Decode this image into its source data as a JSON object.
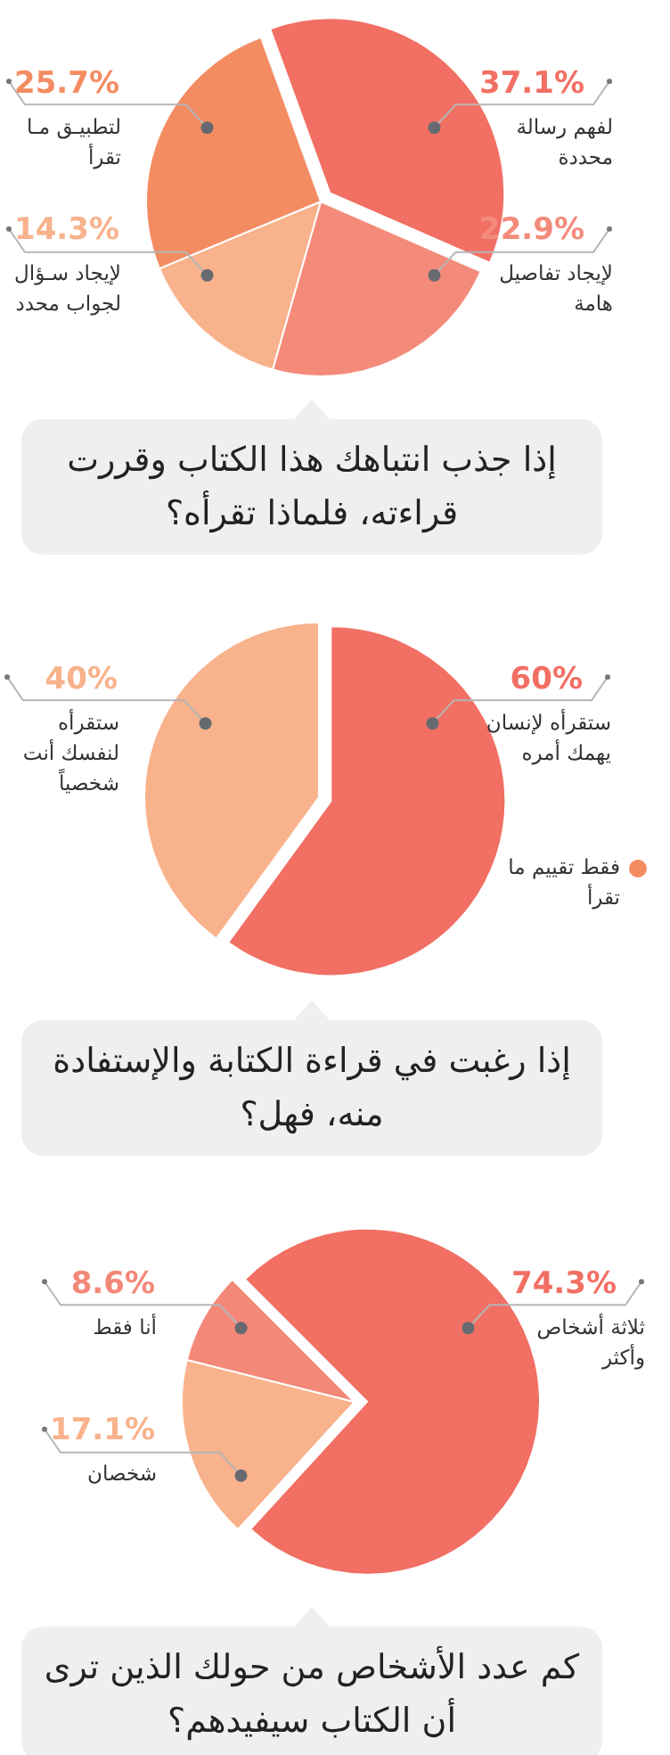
{
  "chart_data": [
    {
      "type": "pie",
      "title": "إذا جذب انتباهك هذا الكتاب وقررت قراءته، فلماذا تقرأه؟",
      "categories": [
        "لفهم رسالة محددة",
        "لإيجاد تفاصيل هامة",
        "لإيجاد سـؤال لجواب محدد",
        "لتطبيـق مـا تقرأ"
      ],
      "values": [
        37.1,
        22.9,
        14.3,
        25.7
      ],
      "colors": [
        "#f26f63",
        "#f48b7a",
        "#f8b28c",
        "#f48c62"
      ],
      "value_labels": [
        "37.1%",
        "22.9%",
        "14.3%",
        "25.7%"
      ]
    },
    {
      "type": "pie",
      "title": "إذا رغبت في قراءة الكتابة والإستفادة منه، فهل؟",
      "categories": [
        "ستقرأه لإنسان يهمك أمره",
        "ستقرأه لنفسك أنت شخصياً",
        "فقط تقييم ما تقرأ"
      ],
      "values": [
        60,
        40,
        0
      ],
      "colors": [
        "#f26f63",
        "#f8b28c",
        "#f48c62"
      ],
      "value_labels": [
        "60%",
        "40%",
        null
      ]
    },
    {
      "type": "pie",
      "title": "كم عدد الأشخاص من حولك الذين ترى أن الكتاب سيفيدهم؟",
      "categories": [
        "ثلاثة أشخاص وأكثر",
        "شخصان",
        "أنا فقط"
      ],
      "values": [
        74.3,
        17.1,
        8.6
      ],
      "colors": [
        "#f26f63",
        "#f8b28c",
        "#f38878"
      ],
      "value_labels": [
        "74.3%",
        "17.1%",
        "8.6%"
      ]
    }
  ]
}
